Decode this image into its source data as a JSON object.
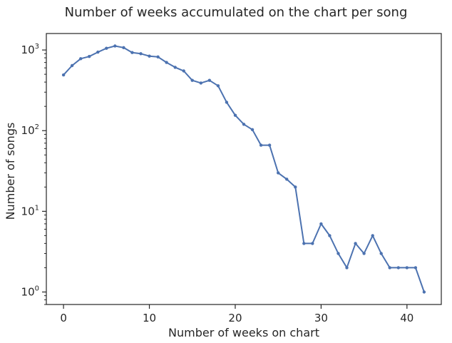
{
  "chart_data": {
    "type": "line",
    "title": "Number of weeks accumulated on the chart per song",
    "xlabel": "Number of weeks on chart",
    "ylabel": "Number of songs",
    "yscale": "log",
    "xlim": [
      -2,
      44
    ],
    "ylim": [
      0.7,
      1600
    ],
    "grid": false,
    "x_ticks": [
      0,
      10,
      20,
      30,
      40
    ],
    "x_tick_labels": [
      "0",
      "10",
      "20",
      "30",
      "40"
    ],
    "y_ticks": [
      1,
      10,
      100,
      1000
    ],
    "y_tick_labels": [
      {
        "base": "10",
        "exp": "0"
      },
      {
        "base": "10",
        "exp": "1"
      },
      {
        "base": "10",
        "exp": "2"
      },
      {
        "base": "10",
        "exp": "3"
      }
    ],
    "line_color": "#4c72b0",
    "series": [
      {
        "x": [
          0,
          1,
          2,
          3,
          4,
          5,
          6,
          7,
          8,
          9,
          10,
          11,
          12,
          13,
          14,
          15,
          16,
          17,
          18,
          19,
          20,
          21,
          22,
          23,
          24,
          25,
          26,
          27,
          28,
          29,
          30,
          31,
          32,
          33,
          34,
          35,
          36,
          37,
          38,
          39,
          40,
          41,
          42
        ],
        "values": [
          490,
          640,
          780,
          830,
          940,
          1050,
          1120,
          1070,
          930,
          900,
          840,
          820,
          700,
          610,
          550,
          420,
          390,
          420,
          360,
          225,
          155,
          120,
          103,
          66,
          66,
          30,
          25,
          20,
          4,
          4,
          7,
          5,
          3,
          2,
          4,
          3,
          5,
          3,
          2,
          2,
          2,
          2,
          1
        ]
      }
    ]
  }
}
